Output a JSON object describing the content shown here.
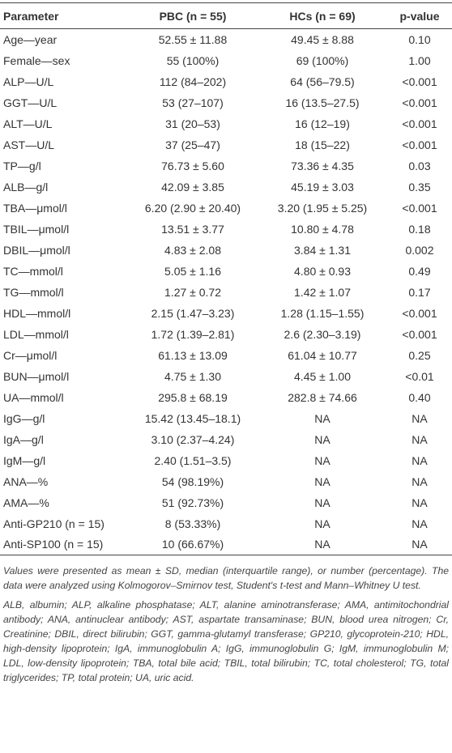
{
  "table": {
    "header": [
      "Parameter",
      "PBC (n = 55)",
      "HCs (n = 69)",
      "p-value"
    ],
    "rows": [
      [
        "Age—year",
        "52.55 ± 11.88",
        "49.45 ± 8.88",
        "0.10"
      ],
      [
        "Female—sex",
        "55 (100%)",
        "69 (100%)",
        "1.00"
      ],
      [
        "ALP—U/L",
        "112 (84–202)",
        "64 (56–79.5)",
        "<0.001"
      ],
      [
        "GGT—U/L",
        "53 (27–107)",
        "16 (13.5–27.5)",
        "<0.001"
      ],
      [
        "ALT—U/L",
        "31 (20–53)",
        "16 (12–19)",
        "<0.001"
      ],
      [
        "AST—U/L",
        "37 (25–47)",
        "18 (15–22)",
        "<0.001"
      ],
      [
        "TP—g/l",
        "76.73 ± 5.60",
        "73.36 ± 4.35",
        "0.03"
      ],
      [
        "ALB—g/l",
        "42.09 ± 3.85",
        "45.19 ± 3.03",
        "0.35"
      ],
      [
        "TBA—μmol/l",
        "6.20 (2.90 ± 20.40)",
        "3.20 (1.95 ± 5.25)",
        "<0.001"
      ],
      [
        "TBIL—μmol/l",
        "13.51 ± 3.77",
        "10.80 ± 4.78",
        "0.18"
      ],
      [
        "DBIL—μmol/l",
        "4.83 ± 2.08",
        "3.84 ± 1.31",
        "0.002"
      ],
      [
        "TC—mmol/l",
        "5.05 ± 1.16",
        "4.80 ± 0.93",
        "0.49"
      ],
      [
        "TG—mmol/l",
        "1.27 ± 0.72",
        "1.42 ± 1.07",
        "0.17"
      ],
      [
        "HDL—mmol/l",
        "2.15 (1.47–3.23)",
        "1.28 (1.15–1.55)",
        "<0.001"
      ],
      [
        "LDL—mmol/l",
        "1.72 (1.39–2.81)",
        "2.6 (2.30–3.19)",
        "<0.001"
      ],
      [
        "Cr—μmol/l",
        "61.13 ± 13.09",
        "61.04 ± 10.77",
        "0.25"
      ],
      [
        "BUN—μmol/l",
        "4.75 ± 1.30",
        "4.45 ± 1.00",
        "<0.01"
      ],
      [
        "UA—mmol/l",
        "295.8 ± 68.19",
        "282.8 ± 74.66",
        "0.40"
      ],
      [
        "IgG—g/l",
        "15.42 (13.45–18.1)",
        "NA",
        "NA"
      ],
      [
        "IgA—g/l",
        "3.10 (2.37–4.24)",
        "NA",
        "NA"
      ],
      [
        "IgM—g/l",
        "2.40 (1.51–3.5)",
        "NA",
        "NA"
      ],
      [
        "ANA—%",
        "54 (98.19%)",
        "NA",
        "NA"
      ],
      [
        "AMA—%",
        "51 (92.73%)",
        "NA",
        "NA"
      ],
      [
        "Anti-GP210 (n = 15)",
        "8 (53.33%)",
        "NA",
        "NA"
      ],
      [
        "Anti-SP100 (n = 15)",
        "10 (66.67%)",
        "NA",
        "NA"
      ]
    ]
  },
  "footnotes": [
    "Values were presented as mean ± SD, median (interquartile range), or number (percentage). The data were analyzed using Kolmogorov–Smirnov test, Student's t-test and Mann–Whitney U test.",
    "ALB, albumin; ALP, alkaline phosphatase; ALT, alanine aminotransferase; AMA, antimitochondrial antibody; ANA, antinuclear antibody; AST, aspartate transaminase; BUN, blood urea nitrogen; Cr, Creatinine; DBIL, direct bilirubin; GGT, gamma-glutamyl transferase; GP210, glycoprotein-210; HDL, high-density lipoprotein; IgA, immunoglobulin A; IgG, immunoglobulin G; IgM, immunoglobulin M; LDL, low-density lipoprotein; TBA, total bile acid; TBIL, total bilirubin; TC, total cholesterol; TG, total triglycerides; TP, total protein; UA, uric acid."
  ]
}
